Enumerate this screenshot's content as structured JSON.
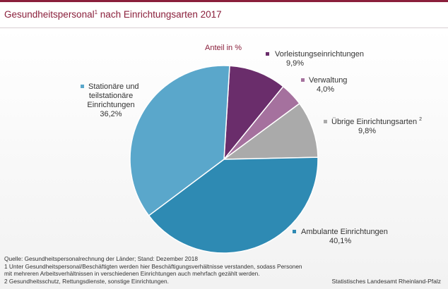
{
  "title": {
    "text": "Gesundheitspersonal",
    "sup": "1",
    "rest": " nach Einrichtungsarten 2017"
  },
  "chart_data": {
    "type": "pie",
    "subtitle": "Anteil in %",
    "slices": [
      {
        "label": "Vorleistungseinrichtungen",
        "sup": "",
        "value": 9.9,
        "display": "9,9%",
        "color": "#6a2d6b"
      },
      {
        "label": "Verwaltung",
        "sup": "",
        "value": 4.0,
        "display": "4,0%",
        "color": "#a5719e"
      },
      {
        "label": "Übrige Einrichtungsarten",
        "sup": "2",
        "value": 9.8,
        "display": "9,8%",
        "color": "#aaaaaa"
      },
      {
        "label": "Ambulante Einrichtungen",
        "sup": "",
        "value": 40.1,
        "display": "40,1%",
        "color": "#2e8ab3"
      },
      {
        "label": "Stationäre und teilstationäre Einrichtungen",
        "sup": "",
        "value": 36.2,
        "display": "36,2%",
        "color": "#5aa7cb"
      }
    ],
    "label_lines": {
      "stationaer": [
        "Stationäre und",
        "teilstationäre",
        "Einrichtungen"
      ]
    }
  },
  "footnotes": {
    "source": "Quelle: Gesundheitspersonalrechnung der Länder; Stand: Dezember 2018",
    "note1_line1": "1 Unter Gesundheitspersonal/Beschäftigten werden hier Beschäftigungsverhältnisse verstanden, sodass Personen",
    "note1_line2": "mit mehreren Arbeitsverhältnissen in verschiedenen Einrichtungen auch mehrfach gezählt werden.",
    "note2": "2 Gesundheitsschutz, Rettungsdienste, sonstige Einrichtungen.",
    "publisher": "Statistisches Landesamt Rheinland-Pfalz"
  }
}
